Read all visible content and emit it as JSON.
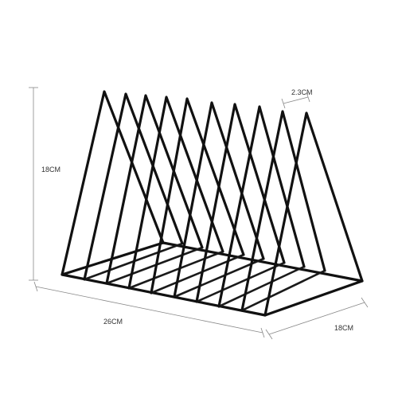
{
  "product": {
    "name": "triangle-wire-file-rack",
    "wire_color": "#111111",
    "background": "#ffffff"
  },
  "dimensions": {
    "height": "18CM",
    "length": "26CM",
    "depth": "18CM",
    "gap": "2.3CM"
  }
}
